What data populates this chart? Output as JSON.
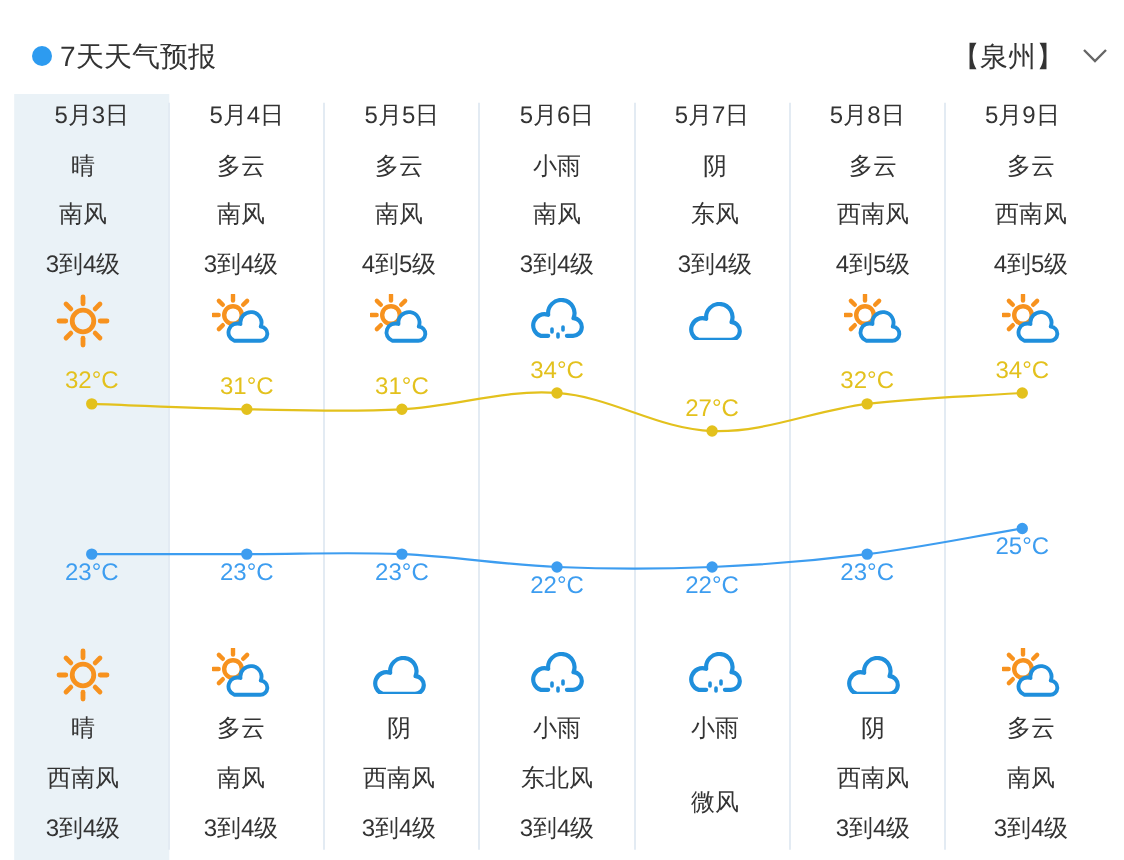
{
  "chart_data": {
    "type": "line",
    "title": "7天天气预报",
    "subtitle": "【泉州】",
    "categories": [
      "5月3日",
      "5月4日",
      "5月5日",
      "5月6日",
      "5月7日",
      "5月8日",
      "5月9日"
    ],
    "series": [
      {
        "color": "#e3c11d",
        "values": [
          32,
          31,
          31,
          34,
          27,
          32,
          34
        ],
        "value_labels": [
          "32°C",
          "31°C",
          "31°C",
          "34°C",
          "27°C",
          "32°C",
          "34°C"
        ]
      },
      {
        "color": "#3d9df0",
        "values": [
          23,
          23,
          23,
          22,
          22,
          23,
          25
        ],
        "axis": "y2",
        "value_labels": [
          "23°C",
          "23°C",
          "23°C",
          "22°C",
          "22°C",
          "23°C",
          "25°C"
        ]
      }
    ],
    "ylim": [
      -50,
      80
    ],
    "y2lim": [
      0,
      55
    ],
    "annotations": [
      "晴",
      "多云",
      "多云",
      "小雨",
      "阴",
      "多云",
      "多云",
      "南风\n3到4级",
      "南风\n3到4级",
      "南风\n4到5级",
      "南风\n3到4级",
      "东风\n3到4级",
      "西南风\n4到5级",
      "西南风\n4到5级",
      "晴",
      "多云",
      "阴",
      "小雨",
      "小雨",
      "阴",
      "多云",
      "西南风\n3到4级",
      "南风\n3到4级",
      "西南风\n3到4级",
      "东北风\n3到4级",
      "微风",
      "西南风\n3到4级",
      "南风\n3到4级"
    ],
    "bands": [
      {
        "axis": "x",
        "from": "5月3日",
        "to": "5月3日",
        "color": "#eaf2f7"
      }
    ],
    "grid": "x",
    "tick_labels": "x",
    "marker": "circle",
    "line_style": "solid"
  }
}
